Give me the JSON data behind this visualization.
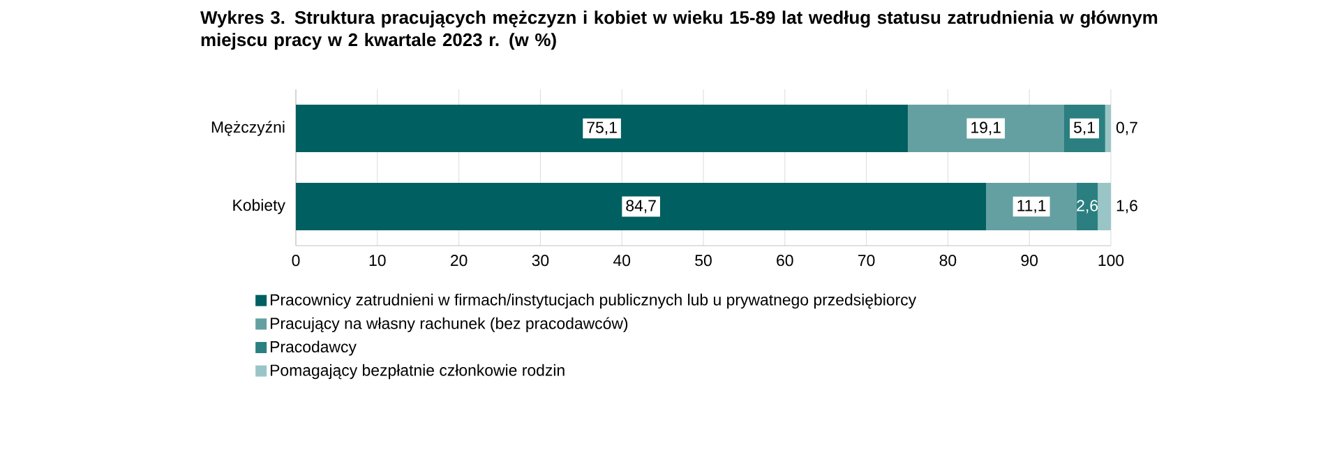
{
  "chart_data": {
    "type": "bar",
    "orientation": "horizontal",
    "stacked": true,
    "title": "Wykres 3. Struktura pracujących mężczyzn i kobiet w wieku 15-89 lat według statusu zatrudnienia w głównym miejscu pracy w 2 kwartale 2023 r. (w %)",
    "categories": [
      "Mężczyźni",
      "Kobiety"
    ],
    "series": [
      {
        "name": "Pracownicy zatrudnieni w firmach/instytucjach publicznych lub u prywatnego przedsiębiorcy",
        "color": "#005f60",
        "values": [
          75.1,
          84.7
        ],
        "value_labels": [
          "75,1",
          "84,7"
        ]
      },
      {
        "name": "Pracujący na własny rachunek (bez pracodawców)",
        "color": "#64a0a2",
        "values": [
          19.1,
          11.1
        ],
        "value_labels": [
          "19,1",
          "11,1"
        ]
      },
      {
        "name": "Pracodawcy",
        "color": "#2b7f80",
        "values": [
          5.1,
          2.6
        ],
        "value_labels": [
          "5,1",
          "2,6"
        ]
      },
      {
        "name": "Pomagający bezpłatnie członkowie rodzin",
        "color": "#9ac5c7",
        "values": [
          0.7,
          1.6
        ],
        "value_labels": [
          "0,7",
          "1,6"
        ]
      }
    ],
    "xlim": [
      0,
      100
    ],
    "xticks": [
      0,
      10,
      20,
      30,
      40,
      50,
      60,
      70,
      80,
      90,
      100
    ],
    "grid": "x",
    "legend": "bottom"
  }
}
